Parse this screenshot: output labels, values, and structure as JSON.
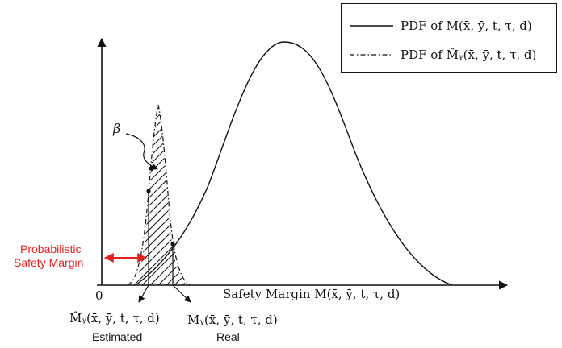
{
  "legend": {
    "solid_label": "PDF of  M(x̄, ȳ, t, τ, d)",
    "dashdot_label": "PDF of  M̂ᵧ(x̄, ȳ, t, τ, d)"
  },
  "axis": {
    "origin_label": "0",
    "x_label": "Safety Margin  M(x̄, ȳ, t, τ, d)"
  },
  "annotations": {
    "beta": "β",
    "probabilistic_line1": "Probabilistic",
    "probabilistic_line2": "Safety Margin",
    "estimated_formula": "M̂ᵧ(x̄, ȳ, t, τ, d)",
    "estimated_word": "Estimated",
    "real_formula": "Mᵧ(x̄, ȳ, t, τ, d)",
    "real_word": "Real"
  },
  "colors": {
    "accent_red": "#e8201e",
    "ink": "#111111"
  }
}
